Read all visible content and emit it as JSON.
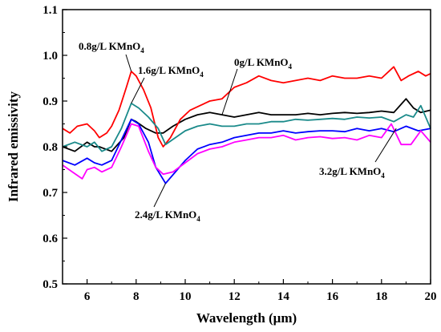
{
  "chart_data": {
    "type": "line",
    "title": "",
    "xlabel": "Wavelength (μm)",
    "ylabel": "Infrared emissivity",
    "xlim": [
      5,
      20
    ],
    "ylim": [
      0.5,
      1.1
    ],
    "xticks": [
      6,
      8,
      10,
      12,
      14,
      16,
      18,
      20
    ],
    "yticks": [
      0.5,
      0.6,
      0.7,
      0.8,
      0.9,
      1.0,
      1.1
    ],
    "xtick_labels": [
      "6",
      "8",
      "10",
      "12",
      "14",
      "16",
      "18",
      "20"
    ],
    "ytick_labels": [
      "0.5",
      "0.6",
      "0.7",
      "0.8",
      "0.9",
      "1.0",
      "1.1"
    ],
    "grid": false,
    "legend": "none",
    "series": [
      {
        "name": "0g/L KMnO4",
        "color": "#000000",
        "x": [
          5.0,
          5.5,
          6.0,
          6.3,
          6.5,
          7.0,
          7.5,
          7.8,
          8.0,
          8.4,
          8.8,
          9.1,
          9.5,
          10.0,
          10.5,
          11.0,
          11.5,
          12.0,
          12.5,
          13.0,
          13.5,
          14.0,
          14.5,
          15.0,
          15.5,
          16.0,
          16.5,
          17.0,
          17.5,
          18.0,
          18.5,
          19.0,
          19.3,
          19.6,
          20.0
        ],
        "y": [
          0.8,
          0.79,
          0.81,
          0.8,
          0.8,
          0.79,
          0.82,
          0.86,
          0.855,
          0.84,
          0.83,
          0.83,
          0.845,
          0.86,
          0.87,
          0.875,
          0.87,
          0.865,
          0.87,
          0.875,
          0.87,
          0.87,
          0.87,
          0.873,
          0.87,
          0.873,
          0.875,
          0.873,
          0.875,
          0.878,
          0.875,
          0.905,
          0.885,
          0.875,
          0.88
        ]
      },
      {
        "name": "0.8g/L KMnO4",
        "color": "#ff0000",
        "x": [
          5.0,
          5.3,
          5.6,
          6.0,
          6.3,
          6.5,
          6.8,
          7.0,
          7.3,
          7.6,
          7.8,
          8.0,
          8.3,
          8.6,
          8.9,
          9.1,
          9.4,
          9.8,
          10.2,
          10.6,
          11.0,
          11.5,
          12.0,
          12.5,
          13.0,
          13.5,
          14.0,
          14.5,
          15.0,
          15.5,
          16.0,
          16.5,
          17.0,
          17.5,
          18.0,
          18.5,
          18.8,
          19.1,
          19.5,
          19.8,
          20.0
        ],
        "y": [
          0.84,
          0.83,
          0.845,
          0.85,
          0.835,
          0.82,
          0.83,
          0.845,
          0.88,
          0.93,
          0.965,
          0.955,
          0.925,
          0.885,
          0.82,
          0.8,
          0.82,
          0.86,
          0.88,
          0.89,
          0.9,
          0.905,
          0.93,
          0.94,
          0.955,
          0.945,
          0.94,
          0.945,
          0.95,
          0.945,
          0.955,
          0.95,
          0.95,
          0.955,
          0.95,
          0.975,
          0.945,
          0.955,
          0.965,
          0.955,
          0.96
        ]
      },
      {
        "name": "1.6g/L KMnO4",
        "color": "#1a8a8a",
        "x": [
          5.0,
          5.5,
          6.0,
          6.3,
          6.6,
          7.0,
          7.4,
          7.8,
          8.1,
          8.5,
          8.9,
          9.2,
          9.6,
          10.0,
          10.5,
          11.0,
          11.5,
          12.0,
          12.5,
          13.0,
          13.5,
          14.0,
          14.5,
          15.0,
          15.5,
          16.0,
          16.5,
          17.0,
          17.5,
          18.0,
          18.5,
          19.0,
          19.3,
          19.6,
          20.0
        ],
        "y": [
          0.8,
          0.81,
          0.8,
          0.81,
          0.79,
          0.8,
          0.84,
          0.895,
          0.885,
          0.865,
          0.84,
          0.805,
          0.82,
          0.835,
          0.845,
          0.85,
          0.845,
          0.845,
          0.85,
          0.85,
          0.855,
          0.855,
          0.86,
          0.858,
          0.86,
          0.862,
          0.86,
          0.865,
          0.863,
          0.865,
          0.855,
          0.87,
          0.865,
          0.89,
          0.84
        ]
      },
      {
        "name": "2.4g/L KMnO4",
        "color": "#0000ff",
        "x": [
          5.0,
          5.5,
          6.0,
          6.3,
          6.6,
          7.0,
          7.4,
          7.8,
          8.1,
          8.5,
          8.8,
          9.2,
          9.6,
          10.0,
          10.5,
          11.0,
          11.5,
          12.0,
          12.5,
          13.0,
          13.5,
          14.0,
          14.5,
          15.0,
          15.5,
          16.0,
          16.5,
          17.0,
          17.5,
          18.0,
          18.5,
          19.0,
          19.5,
          20.0
        ],
        "y": [
          0.77,
          0.76,
          0.775,
          0.765,
          0.76,
          0.77,
          0.815,
          0.86,
          0.85,
          0.81,
          0.755,
          0.72,
          0.745,
          0.77,
          0.795,
          0.805,
          0.81,
          0.82,
          0.825,
          0.83,
          0.83,
          0.835,
          0.83,
          0.833,
          0.835,
          0.835,
          0.833,
          0.84,
          0.835,
          0.84,
          0.833,
          0.845,
          0.835,
          0.84
        ]
      },
      {
        "name": "3.2g/L KMnO4",
        "color": "#ff00ff",
        "x": [
          5.0,
          5.4,
          5.8,
          6.0,
          6.3,
          6.6,
          7.0,
          7.4,
          7.8,
          8.1,
          8.5,
          8.8,
          9.1,
          9.5,
          10.0,
          10.5,
          11.0,
          11.5,
          12.0,
          12.5,
          13.0,
          13.5,
          14.0,
          14.5,
          15.0,
          15.5,
          16.0,
          16.5,
          17.0,
          17.5,
          18.0,
          18.4,
          18.8,
          19.2,
          19.6,
          20.0
        ],
        "y": [
          0.76,
          0.745,
          0.73,
          0.75,
          0.755,
          0.745,
          0.755,
          0.8,
          0.85,
          0.845,
          0.79,
          0.755,
          0.74,
          0.745,
          0.765,
          0.785,
          0.795,
          0.8,
          0.81,
          0.815,
          0.82,
          0.82,
          0.825,
          0.815,
          0.82,
          0.822,
          0.818,
          0.82,
          0.815,
          0.825,
          0.82,
          0.85,
          0.805,
          0.805,
          0.835,
          0.81
        ]
      }
    ],
    "annotations": [
      {
        "text": "0.8g/L KMnO",
        "sub": "4",
        "x": 7.8,
        "y": 0.965
      },
      {
        "text": "1.6g/L KMnO",
        "sub": "4",
        "x": 7.8,
        "y": 0.895
      },
      {
        "text": "0g/L KMnO",
        "sub": "4",
        "x": 11.5,
        "y": 0.87
      },
      {
        "text": "2.4g/L KMnO",
        "sub": "4",
        "x": 9.2,
        "y": 0.72
      },
      {
        "text": "3.2g/L KMnO",
        "sub": "4",
        "x": 18.6,
        "y": 0.84
      }
    ]
  }
}
